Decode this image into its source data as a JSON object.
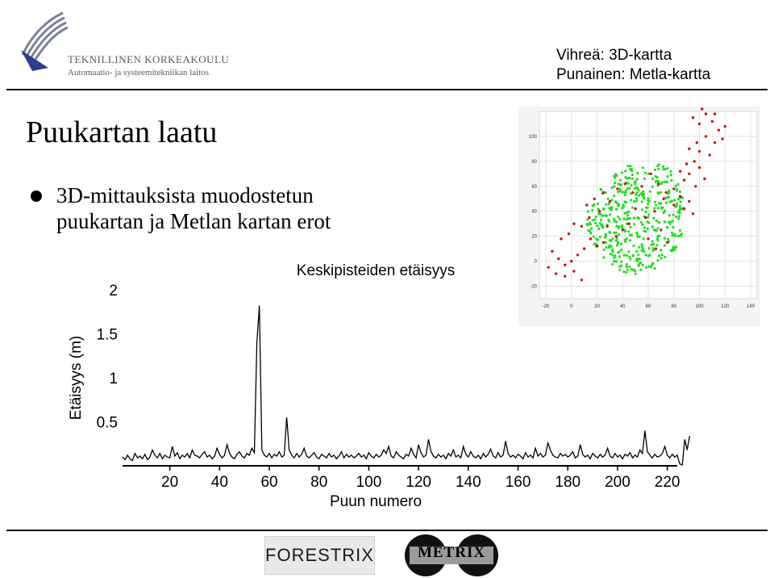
{
  "header": {
    "org_name": "TEKNILLINEN KORKEAKOULU",
    "org_dept": "Automaatio- ja systeemitekniikan laitos",
    "legend_green": "Vihreä: 3D-kartta",
    "legend_red": "Punainen: Metla-kartta"
  },
  "slide": {
    "title": "Puukartan laatu",
    "bullet": "3D-mittauksista muodostetun puukartan ja Metlan kartan erot"
  },
  "footer": {
    "logo_left": "FORESTRIX",
    "logo_right": "METRIX"
  },
  "colors": {
    "green_points": "#22dd22",
    "red_points": "#cc1111",
    "line": "#000000"
  },
  "chart_data": [
    {
      "type": "line",
      "title": "Keskipisteiden etäisyys",
      "xlabel": "Puun numero",
      "ylabel": "Etäisyys (m)",
      "xlim": [
        1,
        224
      ],
      "ylim": [
        0,
        2
      ],
      "xticks": [
        20,
        40,
        60,
        80,
        100,
        120,
        140,
        160,
        180,
        200,
        220
      ],
      "yticks": [
        0.5,
        1,
        1.5,
        2
      ],
      "grid": false,
      "series": [
        {
          "values": [
            0.1,
            0.07,
            0.12,
            0.08,
            0.06,
            0.14,
            0.09,
            0.11,
            0.08,
            0.13,
            0.07,
            0.1,
            0.18,
            0.12,
            0.09,
            0.14,
            0.08,
            0.12,
            0.1,
            0.09,
            0.22,
            0.11,
            0.15,
            0.08,
            0.12,
            0.1,
            0.14,
            0.09,
            0.18,
            0.12,
            0.11,
            0.09,
            0.13,
            0.16,
            0.1,
            0.12,
            0.08,
            0.11,
            0.2,
            0.13,
            0.09,
            0.12,
            0.24,
            0.14,
            0.1,
            0.08,
            0.13,
            0.16,
            0.11,
            0.09,
            0.14,
            0.12,
            0.2,
            0.15,
            1.4,
            1.82,
            0.18,
            0.12,
            0.1,
            0.14,
            0.09,
            0.13,
            0.11,
            0.16,
            0.1,
            0.12,
            0.55,
            0.18,
            0.12,
            0.09,
            0.14,
            0.1,
            0.13,
            0.2,
            0.11,
            0.09,
            0.12,
            0.15,
            0.1,
            0.08,
            0.13,
            0.11,
            0.09,
            0.14,
            0.1,
            0.12,
            0.08,
            0.11,
            0.16,
            0.09,
            0.13,
            0.1,
            0.12,
            0.09,
            0.11,
            0.14,
            0.1,
            0.12,
            0.08,
            0.15,
            0.11,
            0.09,
            0.13,
            0.1,
            0.12,
            0.18,
            0.14,
            0.22,
            0.11,
            0.09,
            0.16,
            0.12,
            0.1,
            0.08,
            0.13,
            0.11,
            0.2,
            0.13,
            0.09,
            0.24,
            0.15,
            0.1,
            0.12,
            0.3,
            0.16,
            0.11,
            0.09,
            0.13,
            0.1,
            0.12,
            0.08,
            0.14,
            0.11,
            0.18,
            0.1,
            0.12,
            0.09,
            0.22,
            0.13,
            0.1,
            0.16,
            0.11,
            0.09,
            0.12,
            0.08,
            0.14,
            0.1,
            0.13,
            0.19,
            0.11,
            0.09,
            0.15,
            0.1,
            0.12,
            0.28,
            0.14,
            0.1,
            0.12,
            0.09,
            0.13,
            0.11,
            0.08,
            0.15,
            0.1,
            0.12,
            0.09,
            0.2,
            0.11,
            0.14,
            0.1,
            0.12,
            0.26,
            0.18,
            0.12,
            0.1,
            0.09,
            0.14,
            0.11,
            0.13,
            0.1,
            0.12,
            0.16,
            0.09,
            0.11,
            0.24,
            0.13,
            0.1,
            0.12,
            0.08,
            0.14,
            0.11,
            0.09,
            0.13,
            0.1,
            0.12,
            0.2,
            0.11,
            0.09,
            0.14,
            0.1,
            0.12,
            0.08,
            0.13,
            0.11,
            0.15,
            0.09,
            0.12,
            0.1,
            0.18,
            0.14,
            0.4,
            0.16,
            0.12,
            0.09,
            0.13,
            0.1,
            0.11,
            0.14,
            0.22,
            0.12,
            0.09,
            0.13,
            0.1,
            0.12,
            0.02,
            0.01,
            0.3,
            0.18,
            0.34
          ]
        }
      ]
    },
    {
      "type": "scatter",
      "xlim": [
        -25,
        145
      ],
      "ylim": [
        -30,
        120
      ],
      "xticks": [
        -20,
        0,
        20,
        40,
        60,
        80,
        100,
        120,
        140
      ],
      "yticks": [
        -20,
        0,
        20,
        40,
        60,
        80,
        100
      ],
      "grid": true,
      "series": [
        {
          "name": "Vihreä: 3D-kartta",
          "color": "#22dd22",
          "region": {
            "cx": 50,
            "cy": 35,
            "rx": 38,
            "ry": 45
          },
          "points_count": 420
        },
        {
          "name": "Punainen: Metla-kartta",
          "color": "#cc1111",
          "points": [
            [
              95,
              115
            ],
            [
              100,
              110
            ],
            [
              105,
              118
            ],
            [
              110,
              112
            ],
            [
              115,
              105
            ],
            [
              120,
              108
            ],
            [
              118,
              98
            ],
            [
              112,
              95
            ],
            [
              105,
              100
            ],
            [
              98,
              95
            ],
            [
              92,
              90
            ],
            [
              100,
              88
            ],
            [
              108,
              85
            ],
            [
              96,
              80
            ],
            [
              90,
              78
            ],
            [
              85,
              72
            ],
            [
              92,
              70
            ],
            [
              100,
              75
            ],
            [
              104,
              66
            ],
            [
              97,
              60
            ],
            [
              88,
              65
            ],
            [
              80,
              58
            ],
            [
              85,
              52
            ],
            [
              92,
              48
            ],
            [
              88,
              42
            ],
            [
              95,
              38
            ],
            [
              80,
              45
            ],
            [
              72,
              50
            ],
            [
              65,
              40
            ],
            [
              58,
              35
            ],
            [
              50,
              42
            ],
            [
              45,
              30
            ],
            [
              40,
              25
            ],
            [
              35,
              20
            ],
            [
              28,
              28
            ],
            [
              25,
              15
            ],
            [
              20,
              12
            ],
            [
              15,
              18
            ],
            [
              10,
              10
            ],
            [
              5,
              5
            ],
            [
              0,
              0
            ],
            [
              -5,
              -3
            ],
            [
              -10,
              2
            ],
            [
              -15,
              8
            ],
            [
              -18,
              -5
            ],
            [
              -12,
              -10
            ],
            [
              -5,
              -12
            ],
            [
              2,
              -8
            ],
            [
              8,
              -15
            ],
            [
              12,
              45
            ],
            [
              18,
              50
            ],
            [
              25,
              55
            ],
            [
              30,
              48
            ],
            [
              22,
              40
            ],
            [
              14,
              35
            ],
            [
              8,
              28
            ],
            [
              2,
              30
            ],
            [
              -2,
              22
            ],
            [
              -8,
              18
            ],
            [
              60,
              18
            ],
            [
              66,
              10
            ],
            [
              70,
              25
            ],
            [
              75,
              15
            ],
            [
              55,
              60
            ],
            [
              48,
              55
            ],
            [
              42,
              62
            ],
            [
              36,
              58
            ],
            [
              62,
              70
            ],
            [
              68,
              62
            ],
            [
              74,
              55
            ],
            [
              112,
              118
            ],
            [
              102,
              122
            ]
          ]
        }
      ]
    }
  ]
}
